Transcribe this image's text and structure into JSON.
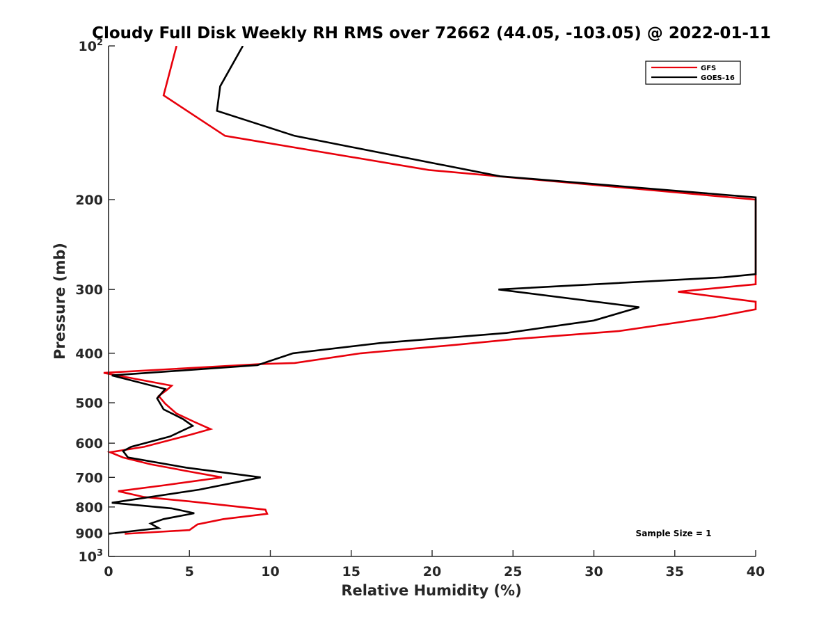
{
  "chart_data": {
    "type": "line",
    "title": "Cloudy Full Disk Weekly RH RMS over 72662 (44.05, -103.05) @ 2022-01-11",
    "xlabel": "Relative Humidity (%)",
    "ylabel": "Pressure (mb)",
    "xlim": [
      0,
      40
    ],
    "ylim": [
      100,
      1000
    ],
    "y_scale": "log",
    "y_reversed": true,
    "grid": false,
    "legend_position": "top-right",
    "x_ticks": [
      "0",
      "5",
      "10",
      "15",
      "20",
      "25",
      "30",
      "35",
      "40"
    ],
    "y_ticks": [
      {
        "value": 100,
        "base": "10",
        "exp": "2"
      },
      {
        "value": 200,
        "label": "200"
      },
      {
        "value": 300,
        "label": "300"
      },
      {
        "value": 400,
        "label": "400"
      },
      {
        "value": 500,
        "label": "500"
      },
      {
        "value": 600,
        "label": "600"
      },
      {
        "value": 700,
        "label": "700"
      },
      {
        "value": 800,
        "label": "800"
      },
      {
        "value": 900,
        "label": "900"
      },
      {
        "value": 1000,
        "base": "10",
        "exp": "3"
      }
    ],
    "series": [
      {
        "name": "GFS",
        "color": "#e8000b",
        "points": [
          [
            4.2,
            100
          ],
          [
            3.4,
            125
          ],
          [
            7.2,
            150
          ],
          [
            19.8,
            175
          ],
          [
            40,
            200
          ],
          [
            40,
            293
          ],
          [
            35.2,
            303
          ],
          [
            40,
            317
          ],
          [
            40,
            328
          ],
          [
            37.4,
            340
          ],
          [
            31.5,
            362
          ],
          [
            25.2,
            375
          ],
          [
            21.5,
            385
          ],
          [
            15.6,
            400
          ],
          [
            11.5,
            418
          ],
          [
            9.3,
            420
          ],
          [
            -0.3,
            437
          ],
          [
            3.9,
            463
          ],
          [
            3.6,
            472
          ],
          [
            3.1,
            485
          ],
          [
            3.5,
            502
          ],
          [
            4.2,
            525
          ],
          [
            5.3,
            545
          ],
          [
            6.3,
            563
          ],
          [
            5.1,
            577
          ],
          [
            2.2,
            610
          ],
          [
            0.1,
            625
          ],
          [
            0.9,
            640
          ],
          [
            2.6,
            660
          ],
          [
            4.8,
            680
          ],
          [
            7.0,
            700
          ],
          [
            3.5,
            725
          ],
          [
            0.6,
            745
          ],
          [
            2.2,
            765
          ],
          [
            5.0,
            780
          ],
          [
            9.7,
            810
          ],
          [
            9.8,
            825
          ],
          [
            7.1,
            845
          ],
          [
            5.5,
            865
          ],
          [
            5.0,
            888
          ],
          [
            1.0,
            903
          ]
        ]
      },
      {
        "name": "GOES-16",
        "color": "#000000",
        "points": [
          [
            8.3,
            100
          ],
          [
            6.9,
            120
          ],
          [
            6.7,
            134
          ],
          [
            11.5,
            150
          ],
          [
            24.2,
            180
          ],
          [
            40,
            198
          ],
          [
            40,
            280
          ],
          [
            38.0,
            284
          ],
          [
            24.1,
            300
          ],
          [
            32.8,
            325
          ],
          [
            30.0,
            345
          ],
          [
            24.6,
            365
          ],
          [
            16.8,
            382
          ],
          [
            11.4,
            400
          ],
          [
            9.2,
            422
          ],
          [
            0.2,
            442
          ],
          [
            3.5,
            470
          ],
          [
            3.0,
            490
          ],
          [
            3.4,
            515
          ],
          [
            4.6,
            538
          ],
          [
            5.2,
            555
          ],
          [
            3.8,
            582
          ],
          [
            1.4,
            610
          ],
          [
            0.9,
            622
          ],
          [
            1.2,
            640
          ],
          [
            4.8,
            670
          ],
          [
            9.4,
            700
          ],
          [
            5.6,
            740
          ],
          [
            0.2,
            785
          ],
          [
            3.9,
            805
          ],
          [
            5.3,
            823
          ],
          [
            3.4,
            845
          ],
          [
            2.6,
            862
          ],
          [
            3.1,
            880
          ],
          [
            0.0,
            903
          ]
        ]
      }
    ],
    "annotation": "Sample Size = 1"
  }
}
